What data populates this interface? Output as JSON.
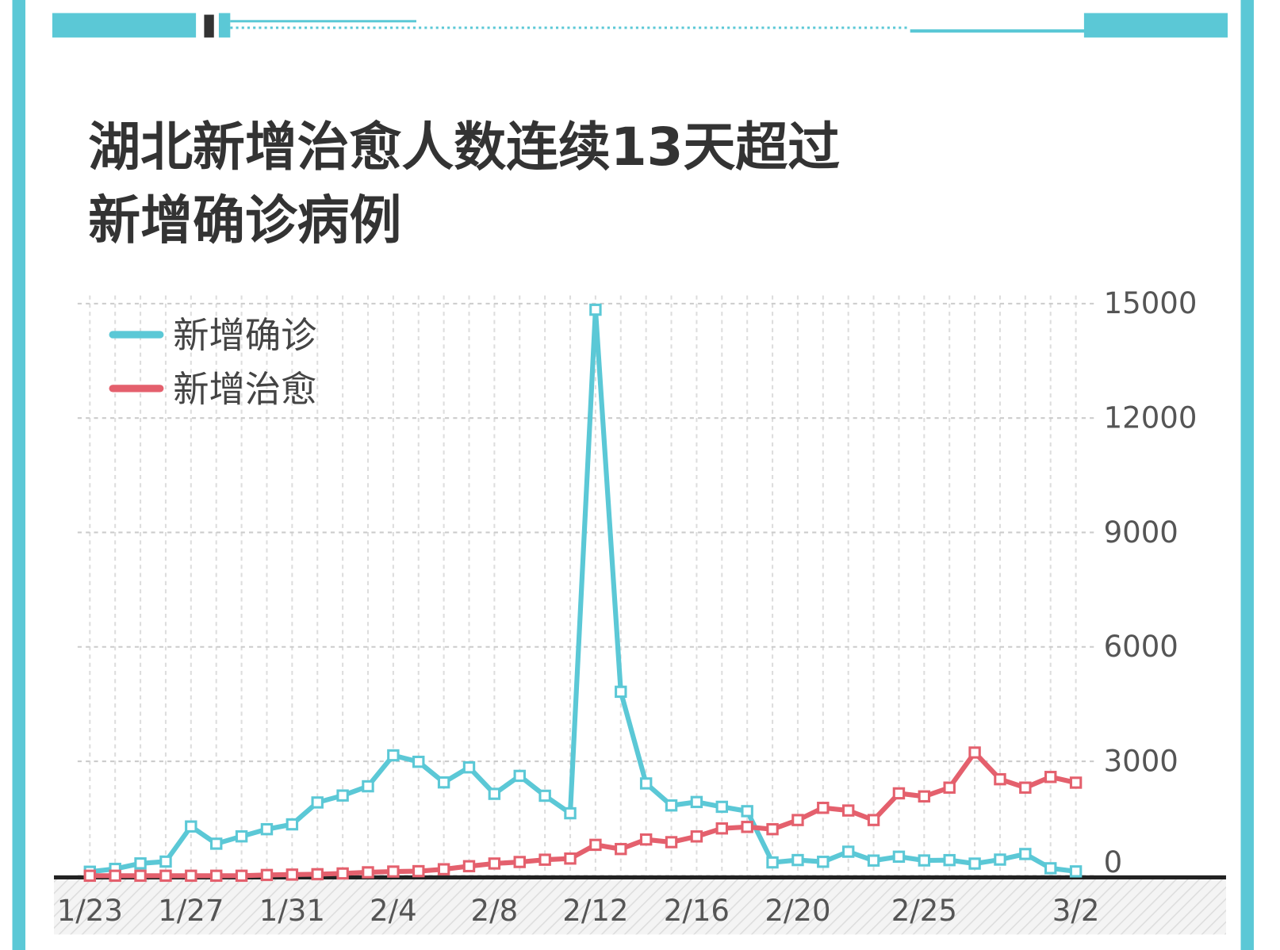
{
  "chart_data": {
    "type": "line",
    "title": [
      "湖北新增治愈人数连续13天超过",
      "新增确诊病例"
    ],
    "categories": [
      "1/23",
      null,
      null,
      null,
      "1/27",
      null,
      null,
      null,
      "1/31",
      null,
      null,
      null,
      "2/4",
      null,
      null,
      null,
      "2/8",
      null,
      null,
      null,
      "2/12",
      null,
      null,
      null,
      "2/16",
      null,
      null,
      null,
      "2/20",
      null,
      null,
      null,
      null,
      "2/25",
      null,
      null,
      null,
      null,
      null,
      "3/2"
    ],
    "series": [
      {
        "name": "新增确诊",
        "color": "#5bc8d6",
        "values": [
          105,
          180,
          323,
          371,
          1291,
          840,
          1032,
          1220,
          1347,
          1921,
          2103,
          2345,
          3156,
          2987,
          2447,
          2841,
          2147,
          2618,
          2097,
          1638,
          14840,
          4823,
          2420,
          1843,
          1933,
          1807,
          1693,
          349,
          411,
          366,
          630,
          398,
          499,
          401,
          409,
          318,
          423,
          570,
          196,
          114
        ]
      },
      {
        "name": "新增治愈",
        "color": "#e4606d",
        "values": [
          0,
          0,
          0,
          0,
          0,
          0,
          0,
          20,
          30,
          40,
          60,
          90,
          110,
          120,
          170,
          250,
          320,
          360,
          420,
          450,
          810,
          700,
          950,
          880,
          1030,
          1240,
          1280,
          1220,
          1460,
          1780,
          1710,
          1460,
          2160,
          2080,
          2310,
          3230,
          2530,
          2310,
          2590,
          2440
        ]
      }
    ],
    "ylim": [
      0,
      15000
    ],
    "yticks": [
      0,
      3000,
      6000,
      9000,
      12000,
      15000
    ],
    "grid": true,
    "legend": "upper left"
  }
}
